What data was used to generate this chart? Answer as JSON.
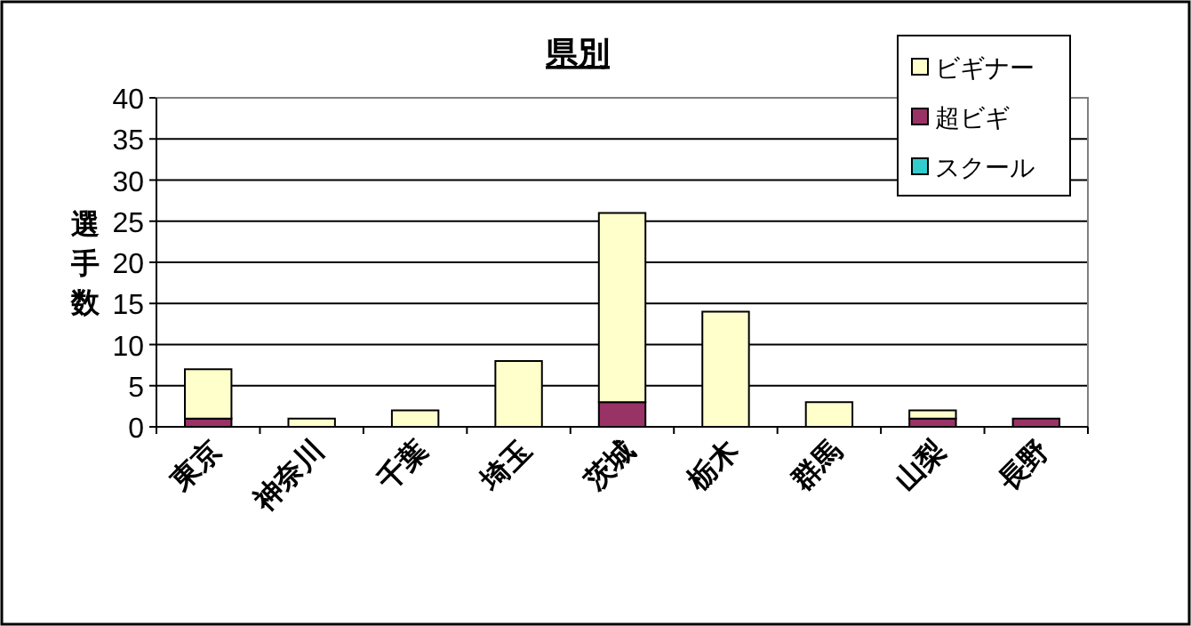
{
  "chart_data": {
    "type": "bar",
    "title": "県別",
    "ylabel": "選手数",
    "stacked": true,
    "categories": [
      "東京",
      "神奈川",
      "千葉",
      "埼玉",
      "茨城",
      "栃木",
      "群馬",
      "山梨",
      "長野"
    ],
    "series": [
      {
        "name": "超ビギ",
        "color": "#993366",
        "values": [
          1,
          0,
          0,
          0,
          3,
          0,
          0,
          1,
          1
        ]
      },
      {
        "name": "ビギナー",
        "color": "#ffffcc",
        "values": [
          6,
          1,
          2,
          8,
          23,
          14,
          3,
          1,
          0
        ]
      },
      {
        "name": "スクール",
        "color": "#33cccc",
        "values": [
          0,
          0,
          0,
          0,
          0,
          0,
          0,
          0,
          0
        ]
      }
    ],
    "ylim": [
      0,
      40
    ],
    "yticks": [
      0,
      5,
      10,
      15,
      20,
      25,
      30,
      35,
      40
    ],
    "grid": "y",
    "legend": "top right"
  }
}
